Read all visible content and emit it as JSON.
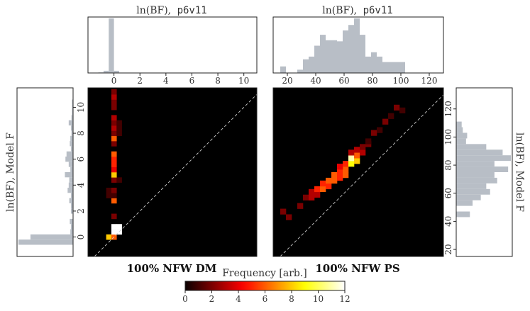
{
  "chart_data": [
    {
      "type": "histogram",
      "title": "ln(BF),",
      "title_code": "p6v11",
      "xlim": [
        -2,
        11
      ],
      "xticks": [
        0,
        2,
        4,
        6,
        8,
        10
      ],
      "bin_edges": [
        -1.2,
        -0.8,
        -0.4,
        0.0,
        0.4,
        0.8
      ],
      "counts": [
        0.01,
        0.04,
        1.0,
        0.04,
        0.0
      ]
    },
    {
      "type": "histogram",
      "title": "ln(BF),",
      "title_code": "p6v11",
      "xlim": [
        10,
        130
      ],
      "xticks": [
        20,
        40,
        60,
        80,
        100,
        120
      ],
      "bin_edges": [
        15,
        19,
        23,
        27,
        31,
        35,
        39,
        43,
        47,
        51,
        55,
        59,
        63,
        67,
        71,
        75,
        79,
        83,
        87,
        91,
        95,
        99,
        103
      ],
      "counts": [
        0.12,
        0.0,
        0.0,
        0.06,
        0.25,
        0.3,
        0.5,
        0.7,
        0.6,
        0.6,
        0.58,
        0.78,
        0.88,
        1.0,
        0.7,
        0.3,
        0.38,
        0.3,
        0.2,
        0.2,
        0.2,
        0.2
      ]
    },
    {
      "type": "histogram",
      "orientation": "horizontal",
      "ylabel": "ln(BF), Model F",
      "ylim": [
        -1.5,
        11.5
      ],
      "yticks": [
        0,
        2,
        4,
        6,
        8,
        10
      ],
      "bin_edges": [
        -0.6,
        -0.2,
        0.2,
        0.6,
        1.0,
        1.4,
        1.8,
        2.2,
        2.6,
        3.0,
        3.4,
        3.8,
        4.2,
        4.6,
        5.0,
        5.4,
        5.8,
        6.2,
        6.6,
        7.0,
        7.4,
        7.8,
        8.2,
        8.6,
        9.0,
        9.4,
        9.8,
        10.2,
        10.6,
        11.0
      ],
      "counts": [
        1.0,
        0.78,
        0.05,
        0.04,
        0.06,
        0.0,
        0.04,
        0.04,
        0.07,
        0.04,
        0.1,
        0.08,
        0.07,
        0.15,
        0.05,
        0.08,
        0.14,
        0.12,
        0.04,
        0.06,
        0.05,
        0.03,
        0.04,
        0.08,
        0.03,
        0.02,
        0.02,
        0.02,
        0.0
      ]
    },
    {
      "type": "heatmap",
      "xlim": [
        -2,
        11
      ],
      "ylim": [
        -1.5,
        11.5
      ],
      "caption": "100% NFW DM",
      "diagonal": true,
      "cells": [
        [
          -0.6,
          -0.2,
          8
        ],
        [
          -0.2,
          -0.2,
          6
        ],
        [
          -0.2,
          0.2,
          12
        ],
        [
          0.2,
          0.2,
          12
        ],
        [
          -0.2,
          0.6,
          12
        ],
        [
          0.2,
          0.6,
          12
        ],
        [
          -0.2,
          1.4,
          2
        ],
        [
          -0.2,
          2.6,
          6
        ],
        [
          -0.6,
          3.0,
          1
        ],
        [
          -0.2,
          3.0,
          1
        ],
        [
          -0.6,
          3.4,
          1
        ],
        [
          -0.2,
          3.4,
          2
        ],
        [
          -0.2,
          4.2,
          2
        ],
        [
          0.2,
          4.2,
          1
        ],
        [
          -0.2,
          4.6,
          8
        ],
        [
          -0.2,
          5.0,
          4
        ],
        [
          -0.2,
          5.4,
          5
        ],
        [
          -0.2,
          5.8,
          5
        ],
        [
          -0.2,
          6.2,
          6
        ],
        [
          -0.2,
          7.0,
          2
        ],
        [
          -0.2,
          7.4,
          6
        ],
        [
          -0.2,
          7.8,
          2
        ],
        [
          0.2,
          7.8,
          1
        ],
        [
          -0.2,
          8.2,
          3
        ],
        [
          0.2,
          8.2,
          1
        ],
        [
          -0.2,
          8.6,
          2
        ],
        [
          0.2,
          8.6,
          1
        ],
        [
          -0.2,
          9.0,
          3
        ],
        [
          -0.2,
          9.8,
          2
        ],
        [
          -0.2,
          10.2,
          2
        ],
        [
          -0.2,
          10.6,
          3
        ],
        [
          -0.2,
          11.0,
          2
        ]
      ]
    },
    {
      "type": "heatmap",
      "xlim": [
        10,
        130
      ],
      "ylim": [
        15,
        135
      ],
      "caption": "100% NFW PS",
      "diagonal": true,
      "cells": [
        [
          15,
          45,
          2
        ],
        [
          19,
          41,
          2
        ],
        [
          27,
          49,
          2
        ],
        [
          31,
          55,
          2
        ],
        [
          35,
          55,
          3
        ],
        [
          35,
          59,
          3
        ],
        [
          39,
          57,
          3
        ],
        [
          39,
          61,
          5
        ],
        [
          43,
          61,
          6
        ],
        [
          47,
          63,
          5
        ],
        [
          43,
          65,
          5
        ],
        [
          47,
          67,
          6
        ],
        [
          51,
          67,
          6
        ],
        [
          51,
          71,
          6
        ],
        [
          55,
          69,
          5
        ],
        [
          55,
          73,
          5
        ],
        [
          59,
          71,
          6
        ],
        [
          59,
          75,
          6
        ],
        [
          55,
          77,
          4
        ],
        [
          59,
          79,
          5
        ],
        [
          63,
          79,
          9
        ],
        [
          63,
          83,
          11
        ],
        [
          67,
          81,
          8
        ],
        [
          67,
          85,
          6
        ],
        [
          63,
          87,
          3
        ],
        [
          67,
          89,
          3
        ],
        [
          71,
          87,
          3
        ],
        [
          71,
          91,
          2
        ],
        [
          75,
          93,
          2
        ],
        [
          75,
          95,
          1
        ],
        [
          79,
          101,
          2
        ],
        [
          83,
          103,
          1
        ],
        [
          87,
          109,
          2
        ],
        [
          91,
          113,
          1
        ],
        [
          95,
          119,
          2
        ],
        [
          99,
          117,
          1
        ]
      ]
    },
    {
      "type": "colorbar",
      "label": "Frequency [arb.]",
      "ticks": [
        0,
        2,
        4,
        6,
        8,
        10,
        12
      ],
      "range": [
        0,
        12
      ],
      "colormap": "hot"
    }
  ],
  "right_ylabel": "ln(BF), Model F",
  "right_ylim": [
    15,
    135
  ],
  "right_yticks": [
    20,
    40,
    60,
    80,
    100,
    120
  ],
  "right_hist": {
    "bin_edges": [
      43,
      47,
      51,
      55,
      59,
      63,
      67,
      71,
      75,
      79,
      83,
      87,
      91,
      95,
      99,
      103,
      107,
      111,
      115,
      119
    ],
    "counts": [
      0.25,
      0.0,
      0.3,
      0.45,
      0.62,
      0.55,
      0.75,
      0.7,
      0.95,
      0.7,
      1.0,
      0.85,
      0.55,
      0.18,
      0.2,
      0.12,
      0.1,
      0.0,
      0.0
    ]
  },
  "colors": {
    "hist": "#b8bec6",
    "bg": "#000000",
    "diag": "#cccccc"
  }
}
